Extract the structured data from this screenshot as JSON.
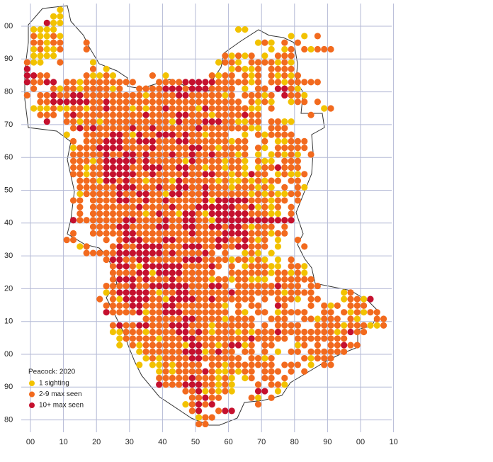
{
  "map": {
    "legend": {
      "title": "Peacock:  2020",
      "items": [
        {
          "label": "1 sighting",
          "color": "#f2c200"
        },
        {
          "label": "2-9 max seen",
          "color": "#f26a1e"
        },
        {
          "label": "10+ max seen",
          "color": "#c5102e"
        }
      ]
    },
    "x_axis_labels": [
      "00",
      "10",
      "20",
      "30",
      "40",
      "50",
      "60",
      "70",
      "80",
      "90",
      "00",
      "10"
    ],
    "y_axis_labels": [
      "00",
      "90",
      "80",
      "70",
      "60",
      "50",
      "40",
      "30",
      "20",
      "10",
      "00",
      "90",
      "80"
    ],
    "dots": [
      ".....0",
      "....00",
      "...200",
      ".0000...........................00",
      ".10010..................................0.0.1",
      ".11011...1.........................010.1.1",
      ".01001...1...........................0.01.10111",
      ".0000.........................10101.0.111",
      "100..1....0..................0110.1111010",
      "2.........1.0..................01001.1111",
      "2211.....10010.....1.0......1011.101.10101",
      "21122.11011111111...1111222221111101.11011111",
      ".1..10110111101..111122212221111.0.11.2210",
      "1.112112211111111101111221111101.11101.2110",
      "..1122222211211111111111111111111.1010..011.1",
      ".00010011011211101011211110211111100 1...  ..01",
      "..111.121111111111211112211101111211.......1",
      "...2..110110111111111102111222110011.1100",
      ".......12121111121121111112111111100.111",
      "......0..1111221021122212110111..0.101111",
      ".......1.1112221122211122111111011..1.00111",
      ".......011122221111211111221101111.10.11111",
      ".......111112112212111211211211101.0.01010.1",
      ".......111012222212111110211110110.100.111",
      ".......110112222112221122110110110.0112111",
      ".......110112222211211112112211010211.01001",
      "........1110221211011102111110100101011 11",
      "........111111222111211221121110111010 1.10",
      "........0111112112211022111211111101010011",
      ".......11.111122112112111112022222111011 1",
      "........1.11111112111121112222221120101 1",
      "........1.11111111012110221022222211100 1",
      ".......2111111122111121122110222222222222",
      "..........1111221111221122112212210111.1",
      ".......1..111112211111111211112222111011",
      "......11....1.12221112211111122112101 0..1",
      "........01...121122221112221121122111.0...1",
      ".........11111222222212111121.1..010.0",
      "............1221122111112221111011010 0.1",
      ".............12210222222111121 1.011100.110",
      ".............1111220222211111..111111011010",
      ".............122212111211111011011000.111111",
      "............1111211222222111221.1111112111 11",
      "............01222221011221111112111111101111....01",
      "...........1.1022221102222112111111 1.1110.11...01102",
      "............1111221112211111110.1.11..21...1.101.111",
      "............2111120112221111111 10.11.01111..11.101011",
      "..................11111122111101111..111..110111 10..11",
      ".............1211221112221110111111.1.1111..11110111001",
      ".............001110111122121011101011121111111101211",
      "..............01111101112211111111211111.11111111",
      "..............0.1011111102211012201 11...01.1.11211",
      ".................011111122201211 11.1.0.11.111111",
      "..................010111122111111 1101....10111",
      ".................0.00101111.1101111111.111.0.11",
      "....................010111121001011.111.1.1",
      "....................111112111010.01.11.1",
      "....................211122211010...1.110",
      "........................11201010...22.0",
      ".........................11211....10.1",
      "........................01212......1",
      ".........................12..122",
      "..........................011",
      "..........................11"
    ]
  }
}
